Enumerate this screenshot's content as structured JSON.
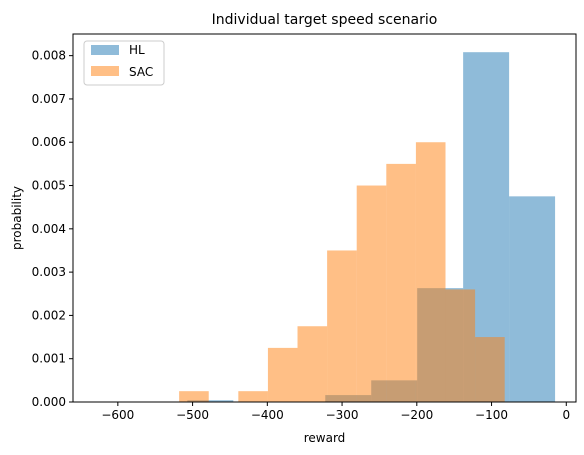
{
  "chart_data": {
    "type": "bar",
    "title": "Individual target speed scenario",
    "xlabel": "reward",
    "ylabel": "probability",
    "xlim": [
      -660,
      13
    ],
    "ylim": [
      0,
      0.0085
    ],
    "xticks": [
      -600,
      -500,
      -400,
      -300,
      -200,
      -100,
      0
    ],
    "xtick_labels": [
      "−600",
      "−500",
      "−400",
      "−300",
      "−200",
      "−100",
      "0"
    ],
    "yticks": [
      0.0,
      0.001,
      0.002,
      0.003,
      0.004,
      0.005,
      0.006,
      0.007,
      0.008
    ],
    "ytick_labels": [
      "0.000",
      "0.001",
      "0.002",
      "0.003",
      "0.004",
      "0.005",
      "0.006",
      "0.007",
      "0.008"
    ],
    "grid": false,
    "legend_position": "top-left",
    "series": [
      {
        "name": "HL",
        "color": "#1f77b4",
        "alpha": 0.5,
        "bins": [
          -630,
          -568.5,
          -507,
          -445.5,
          -384,
          -322.5,
          -261,
          -199.5,
          -138,
          -76.5,
          -15
        ],
        "values": [
          1e-05,
          1e-05,
          4e-05,
          0.0,
          0.0,
          0.00016,
          0.0005,
          0.00263,
          0.00808,
          0.00475
        ]
      },
      {
        "name": "SAC",
        "color": "#ff7f0e",
        "alpha": 0.5,
        "bins": [
          -518,
          -478.4,
          -438.8,
          -399.2,
          -359.6,
          -320,
          -280.4,
          -240.8,
          -201.2,
          -161.6,
          -122,
          -82.4
        ],
        "values": [
          0.00025,
          0.0,
          0.00025,
          0.00125,
          0.00175,
          0.0035,
          0.005,
          0.0055,
          0.006,
          0.0026,
          0.0015
        ]
      }
    ]
  }
}
